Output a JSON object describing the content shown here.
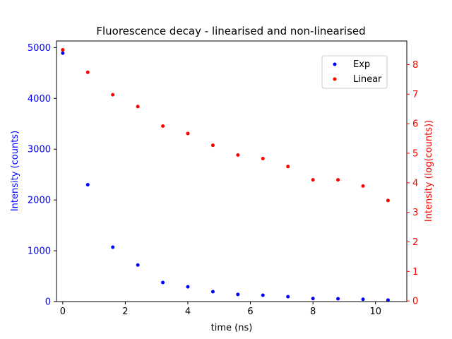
{
  "chart_data": {
    "type": "scatter",
    "title": "Fluorescence decay - linearised and non-linearised",
    "xlabel": "time (ns)",
    "ylabel_left": "Intensity (counts)",
    "ylabel_right": "Intensity (log(counts))",
    "xlim": [
      -0.2,
      11.0
    ],
    "ylim_left": [
      0,
      5130
    ],
    "ylim_right": [
      -0.02,
      8.8
    ],
    "x_ticks": [
      0,
      2,
      4,
      6,
      8,
      10
    ],
    "y_ticks_left": [
      0,
      1000,
      2000,
      3000,
      4000,
      5000
    ],
    "y_ticks_right": [
      0,
      1,
      2,
      3,
      4,
      5,
      6,
      7,
      8
    ],
    "legend_position": "upper right",
    "grid": false,
    "series": [
      {
        "name": "Exp",
        "axis": "left",
        "color": "#0000ff",
        "x": [
          0,
          0.8,
          1.6,
          2.4,
          3.2,
          4.0,
          4.8,
          5.6,
          6.4,
          7.2,
          8.0,
          8.8,
          9.6,
          10.4
        ],
        "y": [
          4890,
          2300,
          1070,
          720,
          375,
          290,
          195,
          140,
          125,
          95,
          60,
          55,
          45,
          30
        ]
      },
      {
        "name": "Linear",
        "axis": "right",
        "color": "#ff0000",
        "x": [
          0,
          0.8,
          1.6,
          2.4,
          3.2,
          4.0,
          4.8,
          5.6,
          6.4,
          7.2,
          8.0,
          8.8,
          9.6,
          10.4
        ],
        "y": [
          8.5,
          7.74,
          6.98,
          6.58,
          5.92,
          5.67,
          5.27,
          4.94,
          4.82,
          4.55,
          4.1,
          4.1,
          3.89,
          3.4
        ]
      }
    ]
  }
}
